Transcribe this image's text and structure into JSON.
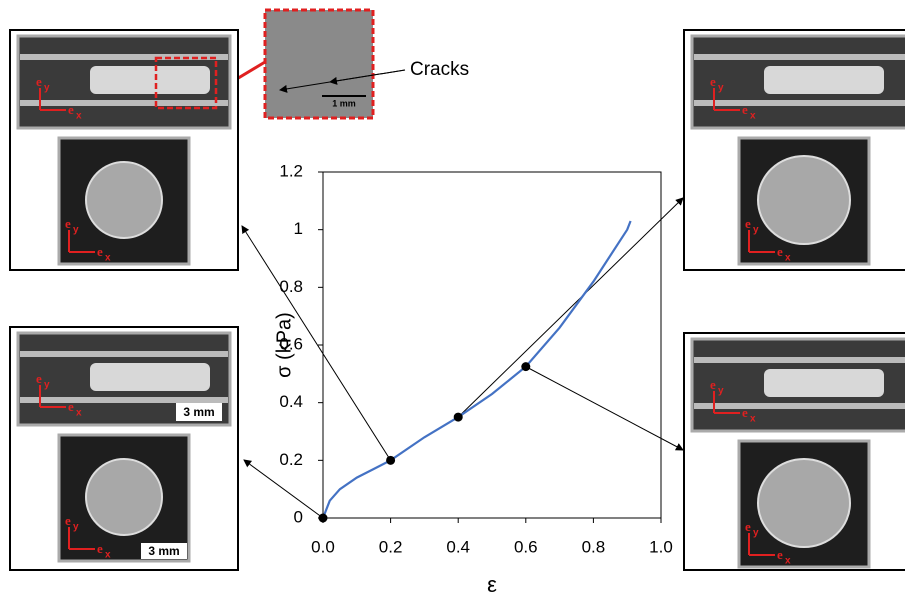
{
  "chart_data": {
    "type": "line",
    "x_label": "ε",
    "y_label": "σ (kPa)",
    "xlim": [
      0,
      1
    ],
    "ylim": [
      0,
      1.2
    ],
    "xticks": [
      {
        "value": 0,
        "label": "0.0"
      },
      0.2,
      0.4,
      0.6,
      0.8,
      {
        "value": 1,
        "label": "1.0"
      }
    ],
    "yticks": [
      0,
      0.2,
      0.4,
      0.6,
      0.8,
      1,
      1.2
    ],
    "series": [
      {
        "color": "#4472c4",
        "x": [
          0,
          0.02,
          0.05,
          0.1,
          0.15,
          0.2,
          0.3,
          0.4,
          0.5,
          0.6,
          0.7,
          0.8,
          0.9,
          0.91
        ],
        "values": [
          0,
          0.06,
          0.1,
          0.14,
          0.17,
          0.2,
          0.28,
          0.35,
          0.43,
          0.525,
          0.66,
          0.82,
          1.0,
          1.03
        ]
      },
      {
        "color": "#000000",
        "markers": true,
        "x": [
          0,
          0.2,
          0.4,
          0.6
        ],
        "values": [
          0,
          0.2,
          0.35,
          0.525
        ]
      }
    ],
    "annotation": "Cracks",
    "scale_labels": [
      "1 mm",
      "3 mm"
    ],
    "basis": {
      "symbol": "e",
      "subscripts": [
        "x",
        "y"
      ]
    }
  }
}
